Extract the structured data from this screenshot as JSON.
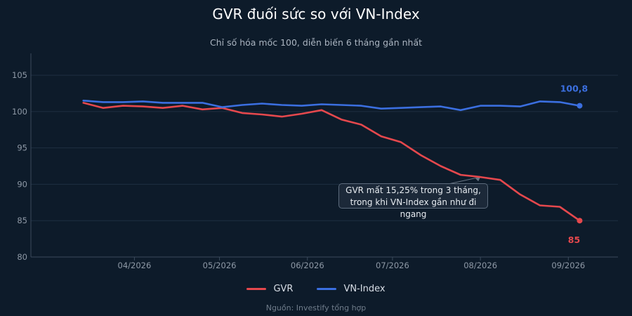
{
  "chart_data": {
    "type": "line",
    "title": "GVR đuối sức so với VN-Index",
    "subtitle": "Chỉ số hóa mốc 100, diễn biến 6 tháng gần nhất",
    "source": "Nguồn: Investify tổng hợp",
    "xlabel": "",
    "ylabel": "",
    "ylim": [
      80,
      108
    ],
    "yticks": [
      80,
      85,
      90,
      95,
      100,
      105
    ],
    "xtick_labels": [
      "04/2026",
      "05/2026",
      "06/2026",
      "07/2026",
      "08/2026",
      "09/2026"
    ],
    "x": [
      "2026-03-14",
      "2026-03-21",
      "2026-03-28",
      "2026-04-04",
      "2026-04-11",
      "2026-04-18",
      "2026-04-25",
      "2026-05-02",
      "2026-05-09",
      "2026-05-16",
      "2026-05-23",
      "2026-05-30",
      "2026-06-06",
      "2026-06-13",
      "2026-06-20",
      "2026-06-27",
      "2026-07-04",
      "2026-07-11",
      "2026-07-18",
      "2026-07-25",
      "2026-08-01",
      "2026-08-08",
      "2026-08-15",
      "2026-08-22",
      "2026-08-29",
      "2026-09-05"
    ],
    "series": [
      {
        "name": "GVR",
        "color": "#e5484d",
        "values": [
          101.2,
          100.5,
          100.8,
          100.7,
          100.5,
          100.8,
          100.3,
          100.5,
          99.8,
          99.6,
          99.3,
          99.7,
          100.2,
          98.9,
          98.2,
          96.6,
          95.8,
          94.0,
          92.5,
          91.3,
          91.0,
          90.6,
          88.6,
          87.1,
          86.9,
          85.0
        ],
        "last_label": "85"
      },
      {
        "name": "VN-Index",
        "color": "#3b6fe0",
        "values": [
          101.5,
          101.3,
          101.3,
          101.4,
          101.2,
          101.2,
          101.2,
          100.6,
          100.9,
          101.1,
          100.9,
          100.8,
          101.0,
          100.9,
          100.8,
          100.4,
          100.5,
          100.6,
          100.7,
          100.2,
          100.8,
          100.8,
          100.7,
          101.4,
          101.3,
          100.8
        ],
        "last_label": "100,8"
      }
    ],
    "annotation": {
      "line1": "GVR mất 15,25% trong 3 tháng,",
      "line2": "trong khi VN-Index gần như đi ngang",
      "arrow_to_x": "2026-08-01",
      "arrow_to_y": 91
    },
    "grid": true,
    "legend": "bottom-center"
  }
}
